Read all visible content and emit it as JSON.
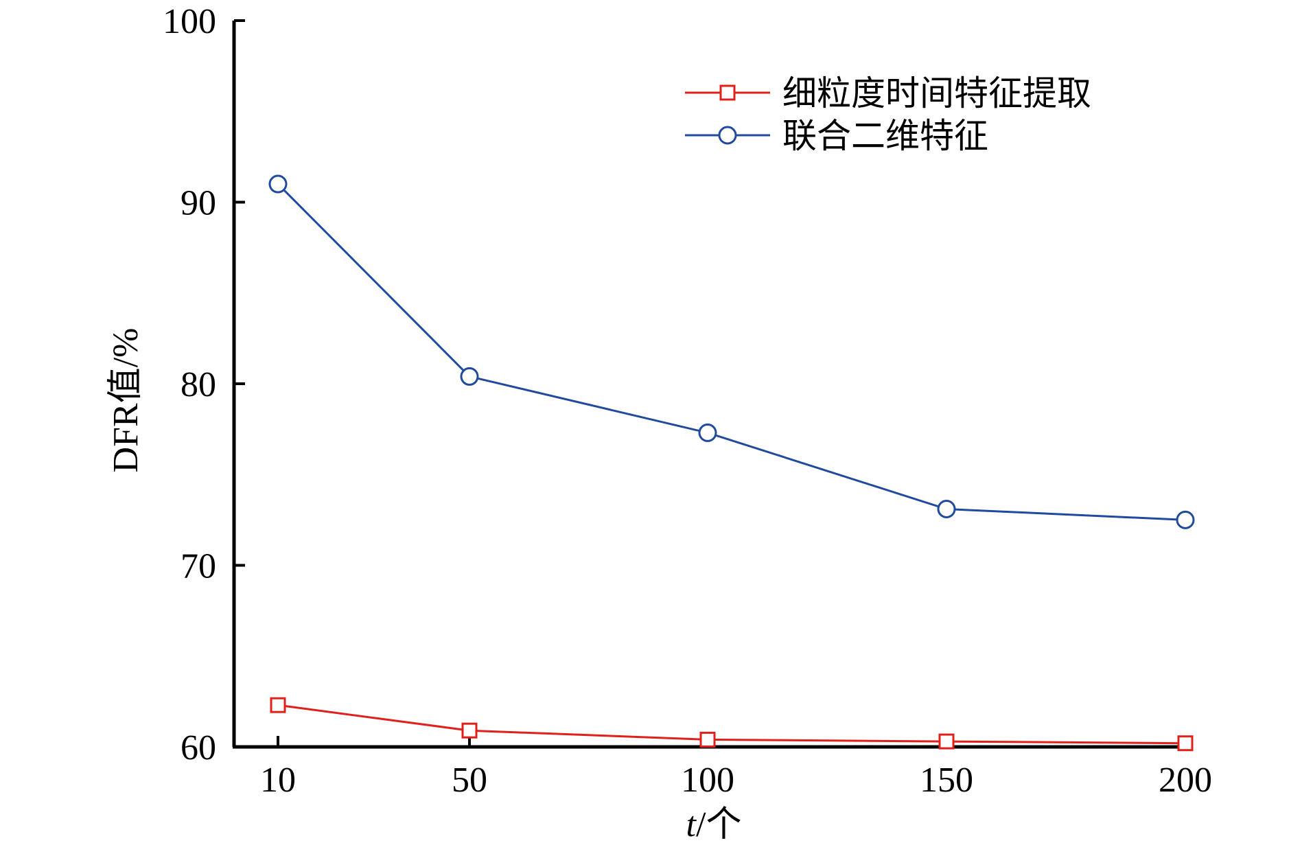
{
  "chart_data": {
    "type": "line",
    "x": [
      10,
      50,
      100,
      150,
      200
    ],
    "x_tick_labels": [
      "10",
      "50",
      "100",
      "150",
      "200"
    ],
    "y_tick_labels": [
      "60",
      "70",
      "80",
      "90",
      "100"
    ],
    "xlabel_italic": "t",
    "xlabel_rest": "/个",
    "ylabel": "DFR值/%",
    "ylim": [
      60,
      100
    ],
    "grid": false,
    "legend_position": "top-right",
    "series": [
      {
        "name": "细粒度时间特征提取",
        "marker": "square",
        "color": "#e0201b",
        "values": [
          62.3,
          60.9,
          60.4,
          60.3,
          60.2
        ]
      },
      {
        "name": "联合二维特征",
        "marker": "circle",
        "color": "#1f4aa0",
        "values": [
          91.0,
          80.4,
          77.3,
          73.1,
          72.5
        ]
      }
    ]
  }
}
